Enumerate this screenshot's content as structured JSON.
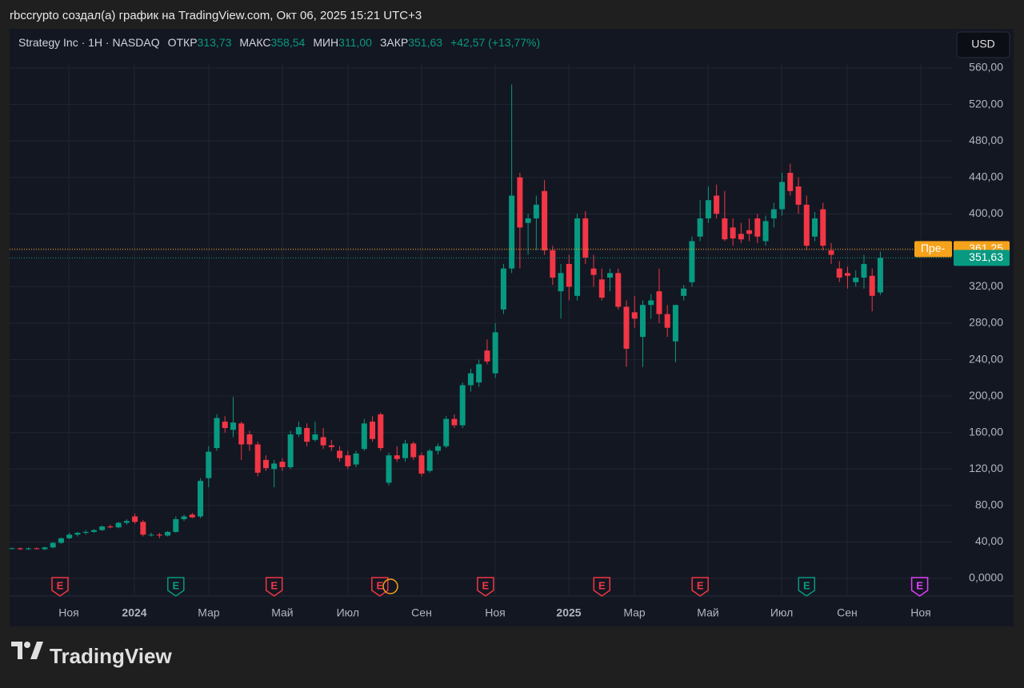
{
  "header": "rbccrypto создал(а) график на TradingView.com, Окт 06, 2025 15:21 UTC+3",
  "brand": "TradingView",
  "chart_data": {
    "type": "candlestick",
    "title": "Strategy Inc · 1H · NASDAQ",
    "legend_items": [
      {
        "label": "ОТКР",
        "value": "313,73"
      },
      {
        "label": "МАКС",
        "value": "358,54"
      },
      {
        "label": "МИН",
        "value": "311,00"
      },
      {
        "label": "ЗАКР",
        "value": "351,63"
      }
    ],
    "change": "+42,57 (+13,77%)",
    "currency": "USD",
    "up_color": "#089981",
    "down_color": "#f23645",
    "open": [
      33,
      33,
      32,
      33,
      32,
      34,
      39,
      44,
      48,
      50,
      51,
      53,
      57,
      56,
      61,
      68,
      62,
      48,
      48,
      47,
      51,
      65,
      70,
      68,
      110,
      143,
      172,
      163,
      170,
      158,
      147,
      130,
      120,
      128,
      122,
      158,
      165,
      152,
      155,
      146,
      140,
      135,
      125,
      142,
      172,
      180,
      105,
      135,
      132,
      148,
      135,
      118,
      140,
      145,
      175,
      168,
      212,
      215,
      250,
      225,
      295,
      340,
      440,
      390,
      395,
      425,
      360,
      315,
      345,
      310,
      395,
      340,
      328,
      330,
      335,
      298,
      292,
      265,
      300,
      315,
      290,
      260,
      310,
      325,
      375,
      395,
      420,
      395,
      385,
      378,
      382,
      395,
      370,
      395,
      405,
      445,
      430,
      410,
      375,
      405,
      360,
      340,
      335,
      325,
      330,
      332,
      313.73
    ],
    "high": [
      34,
      34,
      34,
      34,
      35,
      40,
      45,
      50,
      51,
      53,
      54,
      58,
      59,
      62,
      65,
      71,
      64,
      50,
      50,
      52,
      68,
      70,
      72,
      110,
      145,
      180,
      178,
      199,
      172,
      162,
      150,
      135,
      130,
      132,
      162,
      172,
      170,
      172,
      165,
      152,
      145,
      140,
      140,
      175,
      178,
      182,
      138,
      145,
      152,
      150,
      138,
      142,
      148,
      178,
      180,
      215,
      230,
      240,
      262,
      280,
      345,
      542,
      445,
      400,
      420,
      437,
      365,
      345,
      355,
      400,
      403,
      355,
      340,
      340,
      340,
      305,
      310,
      305,
      312,
      340,
      300,
      300,
      322,
      375,
      415,
      430,
      432,
      425,
      395,
      390,
      395,
      400,
      398,
      412,
      445,
      455,
      440,
      420,
      402,
      412,
      368,
      348,
      342,
      338,
      355,
      340,
      358.54
    ],
    "low": [
      32,
      31,
      31,
      32,
      31,
      33,
      38,
      43,
      46,
      48,
      50,
      52,
      55,
      55,
      59,
      60,
      46,
      46,
      44,
      46,
      50,
      63,
      66,
      66,
      100,
      140,
      160,
      155,
      130,
      140,
      112,
      118,
      100,
      118,
      120,
      155,
      145,
      150,
      142,
      140,
      128,
      120,
      122,
      140,
      150,
      140,
      102,
      128,
      128,
      130,
      112,
      116,
      136,
      143,
      165,
      165,
      205,
      210,
      235,
      220,
      290,
      335,
      340,
      355,
      360,
      355,
      322,
      285,
      305,
      305,
      345,
      320,
      305,
      315,
      295,
      232,
      275,
      232,
      285,
      280,
      265,
      237,
      305,
      320,
      370,
      390,
      395,
      370,
      365,
      368,
      370,
      368,
      365,
      385,
      398,
      420,
      400,
      360,
      370,
      360,
      345,
      325,
      318,
      320,
      318,
      293,
      311
    ],
    "close": [
      33,
      32,
      33,
      32,
      34,
      39,
      44,
      48,
      50,
      51,
      53,
      57,
      56,
      61,
      63,
      62,
      48,
      48,
      47,
      51,
      65,
      68,
      67,
      107,
      139,
      176,
      165,
      171,
      147,
      147,
      116,
      121,
      126,
      122,
      158,
      166,
      150,
      158,
      146,
      144,
      132,
      123,
      137,
      170,
      153,
      143,
      135,
      131,
      148,
      133,
      115,
      140,
      145,
      175,
      168,
      212,
      225,
      235,
      238,
      270,
      340,
      420,
      385,
      395,
      410,
      360,
      330,
      335,
      320,
      395,
      352,
      333,
      308,
      335,
      298,
      252,
      285,
      300,
      305,
      290,
      275,
      300,
      318,
      370,
      395,
      415,
      400,
      372,
      373,
      372,
      378,
      375,
      392,
      405,
      435,
      425,
      410,
      365,
      395,
      365,
      355,
      330,
      332,
      330,
      345,
      310,
      351.63
    ],
    "ylim": [
      0,
      560
    ],
    "yticks": [
      {
        "value": 0,
        "label": "0,0000"
      },
      {
        "value": 40,
        "label": "40,00"
      },
      {
        "value": 80,
        "label": "80,00"
      },
      {
        "value": 120,
        "label": "120,00"
      },
      {
        "value": 160,
        "label": "160,00"
      },
      {
        "value": 200,
        "label": "200,00"
      },
      {
        "value": 240,
        "label": "240,00"
      },
      {
        "value": 280,
        "label": "280,00"
      },
      {
        "value": 320,
        "label": "320,00"
      },
      {
        "value": 360,
        "label": "360,00"
      },
      {
        "value": 400,
        "label": "400,00"
      },
      {
        "value": 440,
        "label": "440,00"
      },
      {
        "value": 480,
        "label": "480,00"
      },
      {
        "value": 520,
        "label": "520,00"
      },
      {
        "value": 560,
        "label": "560,00"
      }
    ],
    "xticks": [
      {
        "value": 6.93,
        "label": "Ноя"
      },
      {
        "value": 14.94,
        "label": "2024",
        "emphasis": true
      },
      {
        "value": 24.02,
        "label": "Мар"
      },
      {
        "value": 33.0,
        "label": "Май"
      },
      {
        "value": 41.0,
        "label": "Июл"
      },
      {
        "value": 50.0,
        "label": "Сен"
      },
      {
        "value": 58.98,
        "label": "Ноя"
      },
      {
        "value": 67.97,
        "label": "2025",
        "emphasis": true
      },
      {
        "value": 75.98,
        "label": "Мар"
      },
      {
        "value": 84.96,
        "label": "Май"
      },
      {
        "value": 93.95,
        "label": "Июл"
      },
      {
        "value": 101.95,
        "label": "Сен"
      },
      {
        "value": 110.94,
        "label": "Ноя"
      }
    ],
    "grid": true,
    "price_lines": [
      {
        "name": "Пре-",
        "value": 361.25,
        "label": "361,25",
        "color": "#f7a21b"
      },
      {
        "value": 351.63,
        "label": "351,63",
        "color": "#089981"
      }
    ],
    "events": [
      {
        "label": "E",
        "x": 5.86,
        "color": "#f23645"
      },
      {
        "label": "E",
        "x": 20.0,
        "color": "#089981"
      },
      {
        "label": "E",
        "x": 32.0,
        "color": "#f23645"
      },
      {
        "label": "E",
        "x": 44.9,
        "color": "#f23645"
      },
      {
        "label": "E",
        "x": 57.8,
        "color": "#f23645"
      },
      {
        "label": "E",
        "x": 72.0,
        "color": "#f23645"
      },
      {
        "label": "E",
        "x": 84.0,
        "color": "#f23645"
      },
      {
        "label": "E",
        "x": 97.0,
        "color": "#089981"
      },
      {
        "label": "E",
        "x": 110.8,
        "color": "#e040fb"
      }
    ]
  }
}
